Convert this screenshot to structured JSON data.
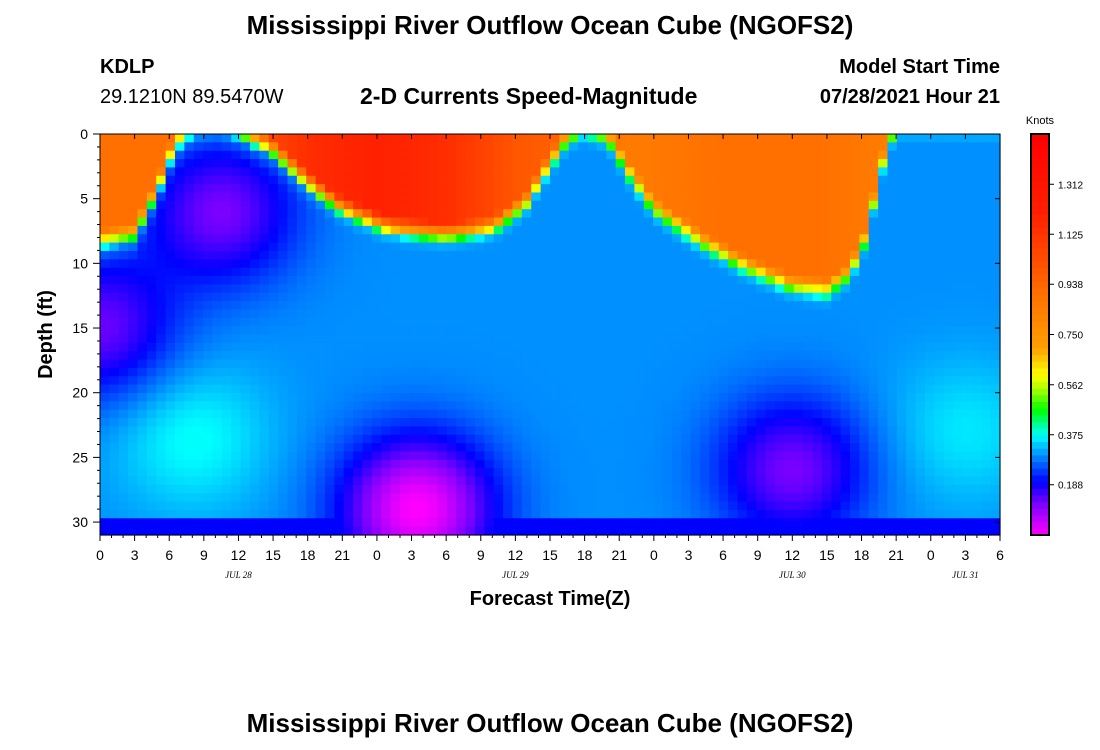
{
  "header": {
    "title": "Mississippi River Outflow Ocean Cube (NGOFS2)",
    "station_id": "KDLP",
    "coordinates": "29.1210N  89.5470W",
    "subtitle": "2-D Currents Speed-Magnitude",
    "model_start_label": "Model Start Time",
    "model_start_time": "07/28/2021 Hour 21"
  },
  "footer": {
    "title": "Mississippi River Outflow Ocean Cube (NGOFS2)"
  },
  "chart_data": {
    "type": "heatmap",
    "title": "2-D Currents Speed-Magnitude",
    "xlabel": "Forecast Time(Z)",
    "ylabel": "Depth (ft)",
    "x_unit": "hours since Jul 28 00Z",
    "xlim": [
      0,
      78
    ],
    "ylim": [
      0,
      31
    ],
    "y_inverted": true,
    "x_ticks": [
      {
        "x": 0,
        "label": "0"
      },
      {
        "x": 3,
        "label": "3"
      },
      {
        "x": 6,
        "label": "6"
      },
      {
        "x": 9,
        "label": "9"
      },
      {
        "x": 12,
        "label": "12"
      },
      {
        "x": 15,
        "label": "15"
      },
      {
        "x": 18,
        "label": "18"
      },
      {
        "x": 21,
        "label": "21"
      },
      {
        "x": 24,
        "label": "0"
      },
      {
        "x": 27,
        "label": "3"
      },
      {
        "x": 30,
        "label": "6"
      },
      {
        "x": 33,
        "label": "9"
      },
      {
        "x": 36,
        "label": "12"
      },
      {
        "x": 39,
        "label": "15"
      },
      {
        "x": 42,
        "label": "18"
      },
      {
        "x": 45,
        "label": "21"
      },
      {
        "x": 48,
        "label": "0"
      },
      {
        "x": 51,
        "label": "3"
      },
      {
        "x": 54,
        "label": "6"
      },
      {
        "x": 57,
        "label": "9"
      },
      {
        "x": 60,
        "label": "12"
      },
      {
        "x": 63,
        "label": "15"
      },
      {
        "x": 66,
        "label": "18"
      },
      {
        "x": 69,
        "label": "21"
      },
      {
        "x": 72,
        "label": "0"
      },
      {
        "x": 75,
        "label": "3"
      },
      {
        "x": 78,
        "label": "6"
      }
    ],
    "date_labels": [
      {
        "x": 12,
        "label": "JUL 28"
      },
      {
        "x": 36,
        "label": "JUL 29"
      },
      {
        "x": 60,
        "label": "JUL 30"
      },
      {
        "x": 75,
        "label": "JUL 31"
      }
    ],
    "y_ticks": [
      0,
      5,
      10,
      15,
      20,
      25,
      30
    ],
    "colorbar": {
      "label": "Knots",
      "min": 0,
      "max": 1.5,
      "ticks": [
        "1.312",
        "1.125",
        "0.938",
        "0.750",
        "0.562",
        "0.375",
        "0.188"
      ],
      "stops": [
        {
          "v": 0.0,
          "color": "#ff00ff"
        },
        {
          "v": 0.12,
          "color": "#7a00ff"
        },
        {
          "v": 0.2,
          "color": "#0000ff"
        },
        {
          "v": 0.3,
          "color": "#0090ff"
        },
        {
          "v": 0.375,
          "color": "#00ffff"
        },
        {
          "v": 0.47,
          "color": "#00ff00"
        },
        {
          "v": 0.55,
          "color": "#b0ff00"
        },
        {
          "v": 0.6,
          "color": "#ffff00"
        },
        {
          "v": 0.7,
          "color": "#ffa000"
        },
        {
          "v": 0.9,
          "color": "#ff7000"
        },
        {
          "v": 1.2,
          "color": "#ff2000"
        },
        {
          "v": 1.5,
          "color": "#ff0000"
        }
      ]
    },
    "surface_layer": {
      "base_depth_ft": [
        {
          "t": 0,
          "d": 9
        },
        {
          "t": 3,
          "d": 8.5
        },
        {
          "t": 5,
          "d": 5
        },
        {
          "t": 6.5,
          "d": 1.5
        },
        {
          "t": 8,
          "d": 0.3
        },
        {
          "t": 10,
          "d": 0
        },
        {
          "t": 12,
          "d": 0.5
        },
        {
          "t": 15,
          "d": 2
        },
        {
          "t": 18,
          "d": 4.5
        },
        {
          "t": 21,
          "d": 6.5
        },
        {
          "t": 25,
          "d": 8
        },
        {
          "t": 30,
          "d": 8.5
        },
        {
          "t": 34,
          "d": 8
        },
        {
          "t": 37,
          "d": 6
        },
        {
          "t": 39,
          "d": 3
        },
        {
          "t": 40.5,
          "d": 1
        },
        {
          "t": 42,
          "d": 0.3
        },
        {
          "t": 44,
          "d": 1
        },
        {
          "t": 46,
          "d": 4
        },
        {
          "t": 48,
          "d": 6.5
        },
        {
          "t": 52,
          "d": 9
        },
        {
          "t": 56,
          "d": 11
        },
        {
          "t": 60,
          "d": 12.5
        },
        {
          "t": 63,
          "d": 12.8
        },
        {
          "t": 65,
          "d": 11.5
        },
        {
          "t": 66.5,
          "d": 8.5
        },
        {
          "t": 67.5,
          "d": 4
        },
        {
          "t": 68.5,
          "d": 1
        },
        {
          "t": 69.5,
          "d": 0
        },
        {
          "t": 78,
          "d": 0
        }
      ],
      "core_speed_knots": [
        {
          "t": 0,
          "v": 0.9
        },
        {
          "t": 8,
          "v": 0.9
        },
        {
          "t": 13,
          "v": 1.0
        },
        {
          "t": 18,
          "v": 1.15
        },
        {
          "t": 24,
          "v": 1.2
        },
        {
          "t": 30,
          "v": 1.15
        },
        {
          "t": 36,
          "v": 1.0
        },
        {
          "t": 40,
          "v": 0.95
        },
        {
          "t": 46,
          "v": 0.85
        },
        {
          "t": 54,
          "v": 0.9
        },
        {
          "t": 62,
          "v": 0.9
        },
        {
          "t": 68,
          "v": 0.85
        },
        {
          "t": 78,
          "v": 0.85
        }
      ]
    },
    "deep_minima": [
      {
        "t": 10.5,
        "depth_ft": 6,
        "speed_knots": 0.12
      },
      {
        "t": 0,
        "depth_ft": 15,
        "speed_knots": 0.13
      },
      {
        "t": 27.5,
        "depth_ft": 29,
        "speed_knots": 0.0
      },
      {
        "t": 60,
        "depth_ft": 26,
        "speed_knots": 0.12
      },
      {
        "t": 75,
        "depth_ft": 14.5,
        "speed_knots": 0.3
      }
    ],
    "deep_maxima": [
      {
        "t": 8,
        "depth_ft": 23.5,
        "speed_knots": 0.38
      },
      {
        "t": 75,
        "depth_ft": 23,
        "speed_knots": 0.36
      }
    ],
    "background_speed_knots": 0.3
  }
}
